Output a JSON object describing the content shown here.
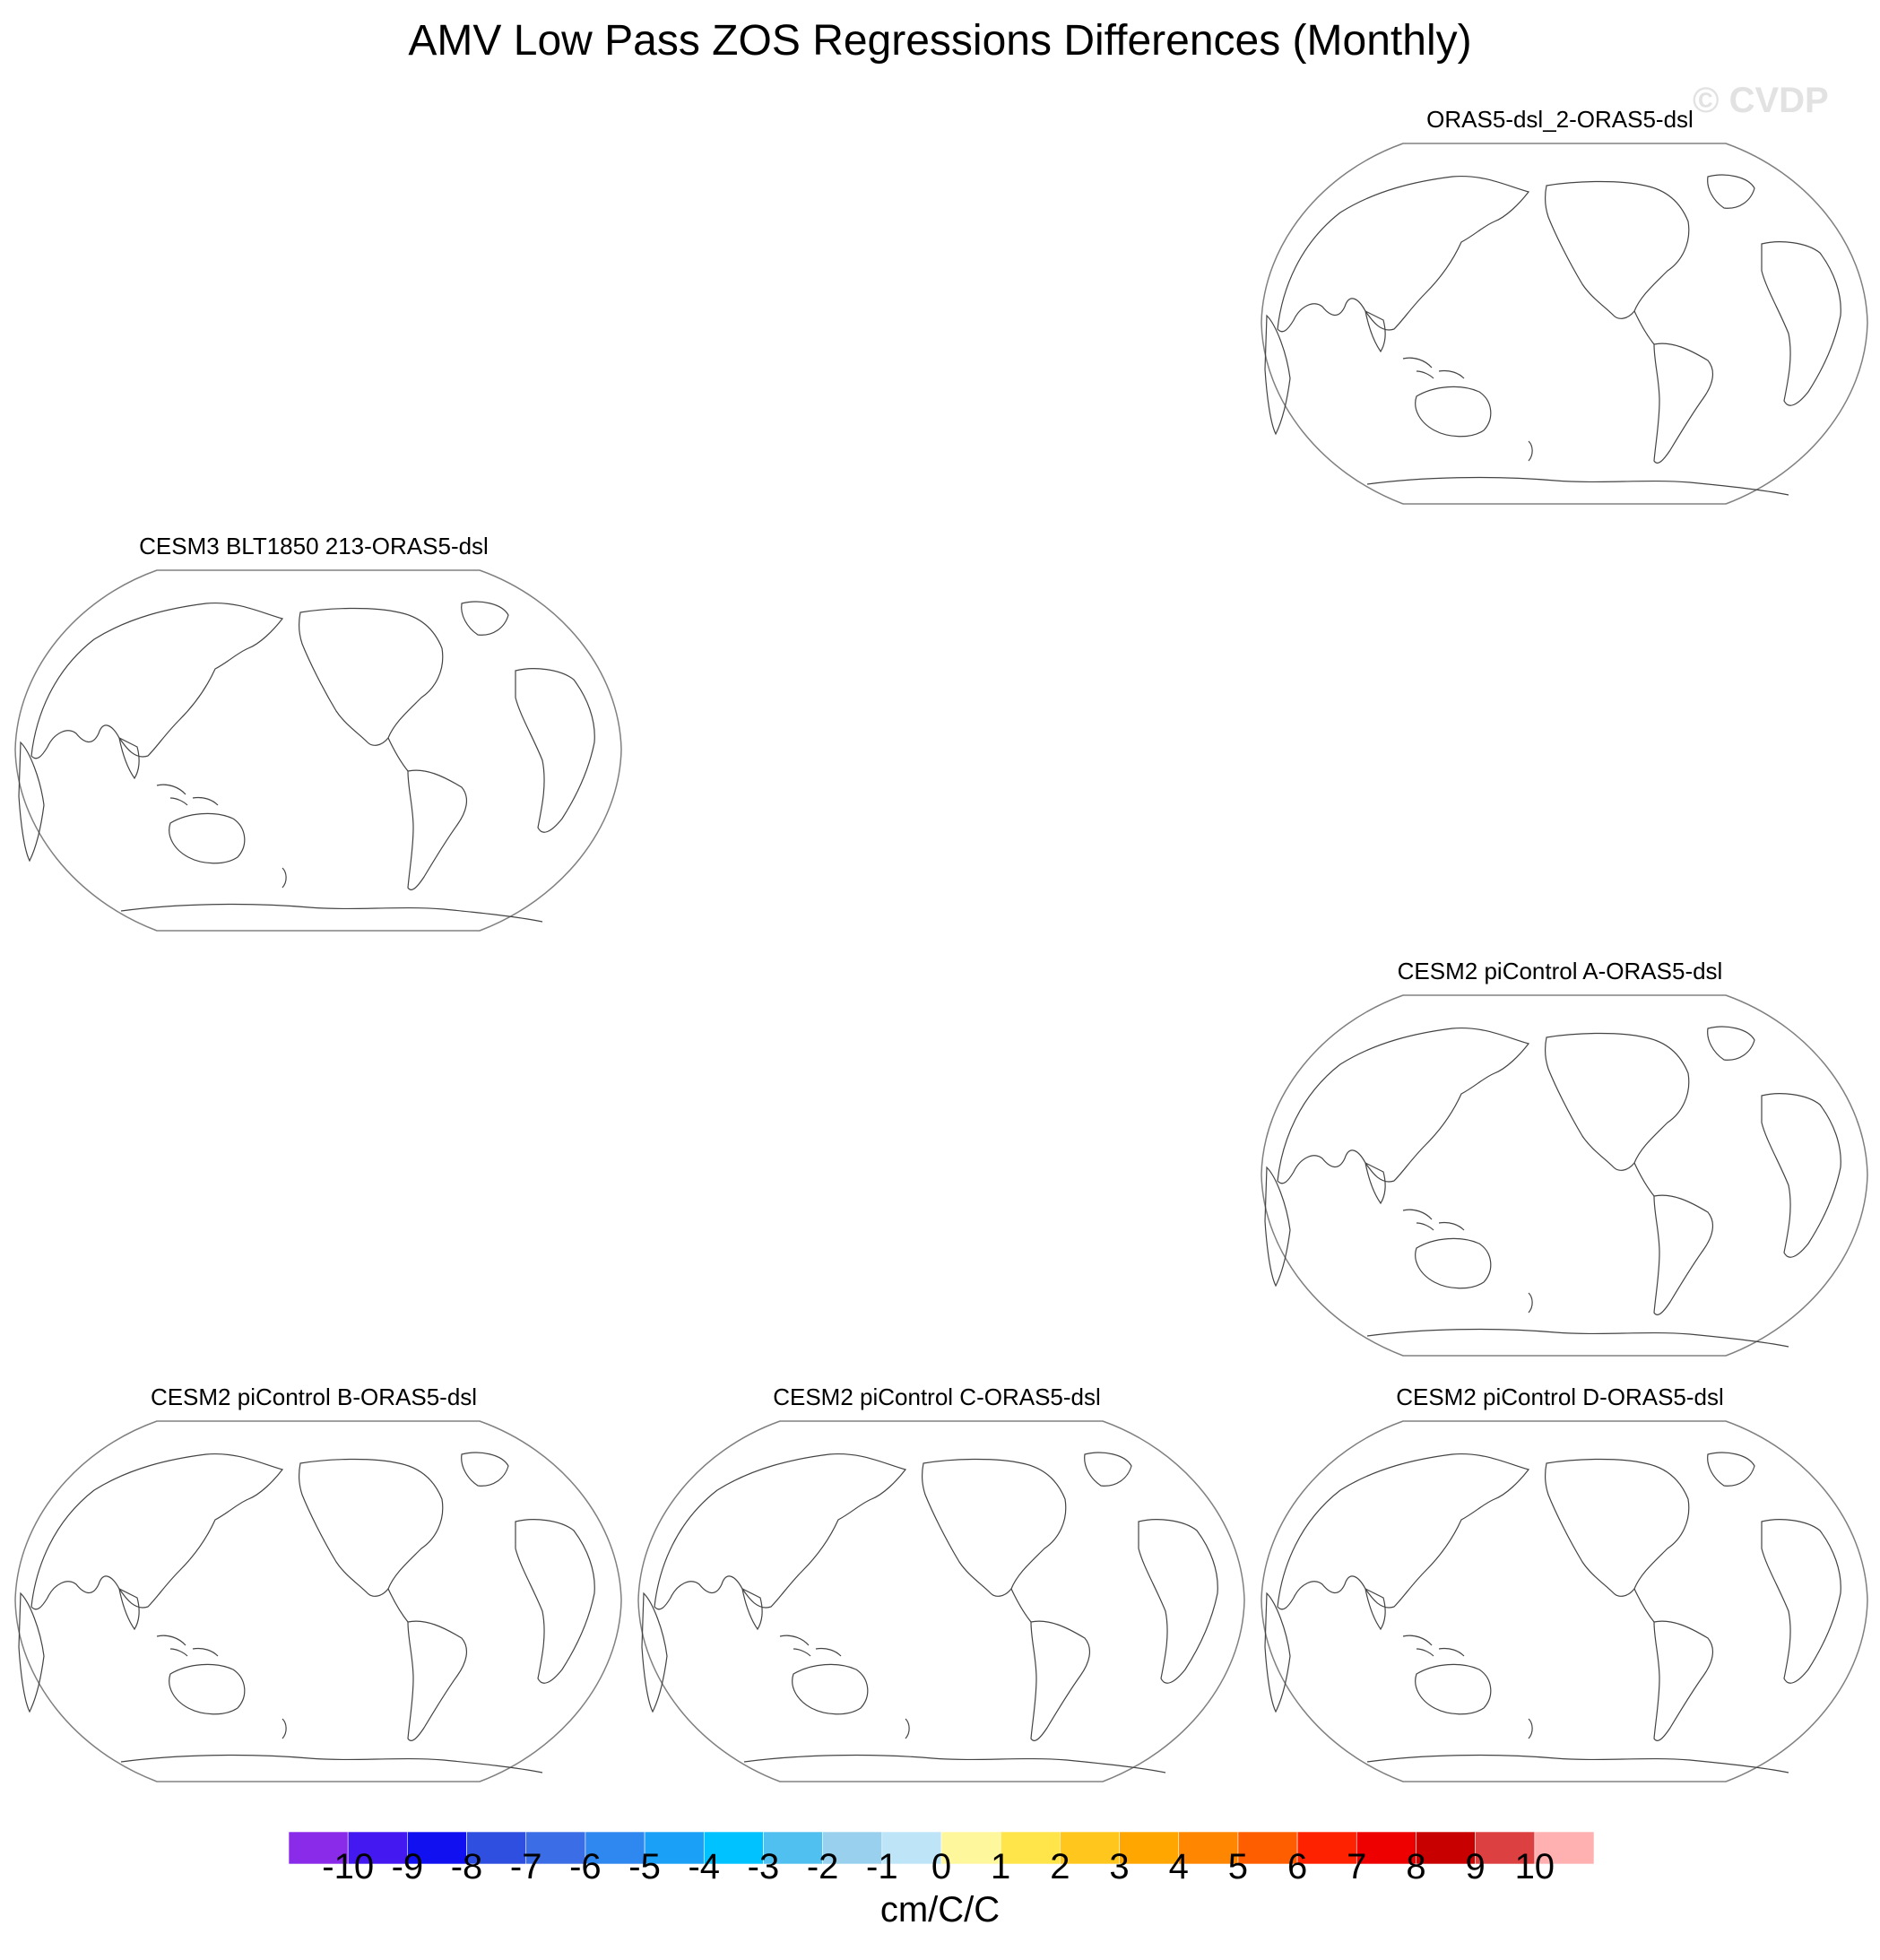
{
  "figure": {
    "title": "AMV Low Pass ZOS Regressions Differences (Monthly)",
    "watermark": "© CVDP"
  },
  "panels": [
    {
      "id": "p1",
      "title": "ORAS5-dsl_2-ORAS5-dsl"
    },
    {
      "id": "p2",
      "title": "CESM3 BLT1850 213-ORAS5-dsl"
    },
    {
      "id": "p3",
      "title": "CESM2 piControl A-ORAS5-dsl"
    },
    {
      "id": "p4",
      "title": "CESM2 piControl B-ORAS5-dsl"
    },
    {
      "id": "p5",
      "title": "CESM2 piControl C-ORAS5-dsl"
    },
    {
      "id": "p6",
      "title": "CESM2 piControl D-ORAS5-dsl"
    }
  ],
  "colorbar": {
    "units": "cm/C/C",
    "tick_labels": [
      "-10",
      "-9",
      "-8",
      "-7",
      "-6",
      "-5",
      "-4",
      "-3",
      "-2",
      "-1",
      "0",
      "1",
      "2",
      "3",
      "4",
      "5",
      "6",
      "7",
      "8",
      "9",
      "10"
    ],
    "colors": [
      "#8a2bea",
      "#4418f0",
      "#1010f0",
      "#2e4fe0",
      "#3b6ee6",
      "#2f87f0",
      "#1aa0f6",
      "#00c2ff",
      "#50c0f0",
      "#98d0ee",
      "#bee4f8",
      "#fff79c",
      "#ffe44a",
      "#ffc61e",
      "#ffa600",
      "#ff8600",
      "#ff5e00",
      "#ff2200",
      "#ee0000",
      "#c80000",
      "#dd4040",
      "#ffb0b0"
    ]
  },
  "map_style": {
    "outline_color": "#808080",
    "coast_color": "#444444",
    "background": "#ffffff"
  }
}
